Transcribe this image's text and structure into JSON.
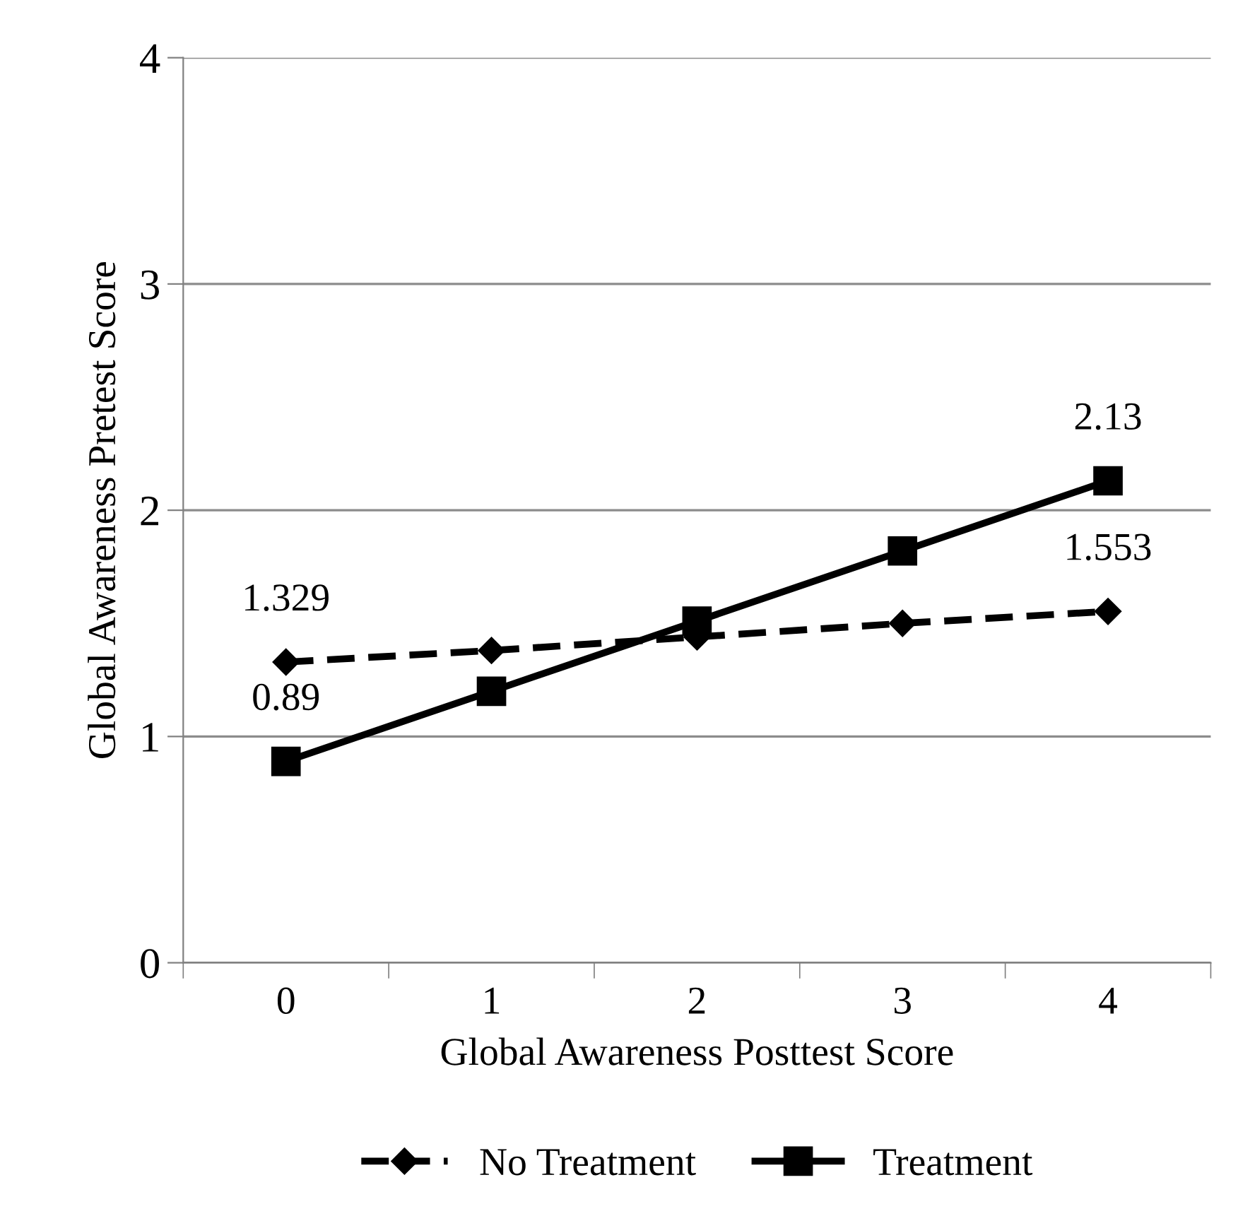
{
  "chart_data": {
    "type": "line",
    "xlabel": "Global Awareness Posttest Score",
    "ylabel": "Global Awareness Pretest Score",
    "categories": [
      "0",
      "1",
      "2",
      "3",
      "4"
    ],
    "series": [
      {
        "name": "No Treatment",
        "color": "#000000",
        "values": [
          1.329,
          1.38,
          1.44,
          1.5,
          1.553
        ],
        "marker": "diamond",
        "line_style": "dashed",
        "value_labels": [
          "1.329",
          null,
          null,
          null,
          "1.553"
        ]
      },
      {
        "name": "Treatment",
        "color": "#000000",
        "values": [
          0.89,
          1.2,
          1.51,
          1.82,
          2.13
        ],
        "marker": "square",
        "line_style": "solid",
        "value_labels": [
          "0.89",
          null,
          null,
          null,
          "2.13"
        ]
      }
    ],
    "ylim": [
      0,
      4
    ],
    "yticks": [
      0,
      1,
      2,
      3,
      4
    ],
    "grid": "y",
    "legend": "bottom"
  }
}
